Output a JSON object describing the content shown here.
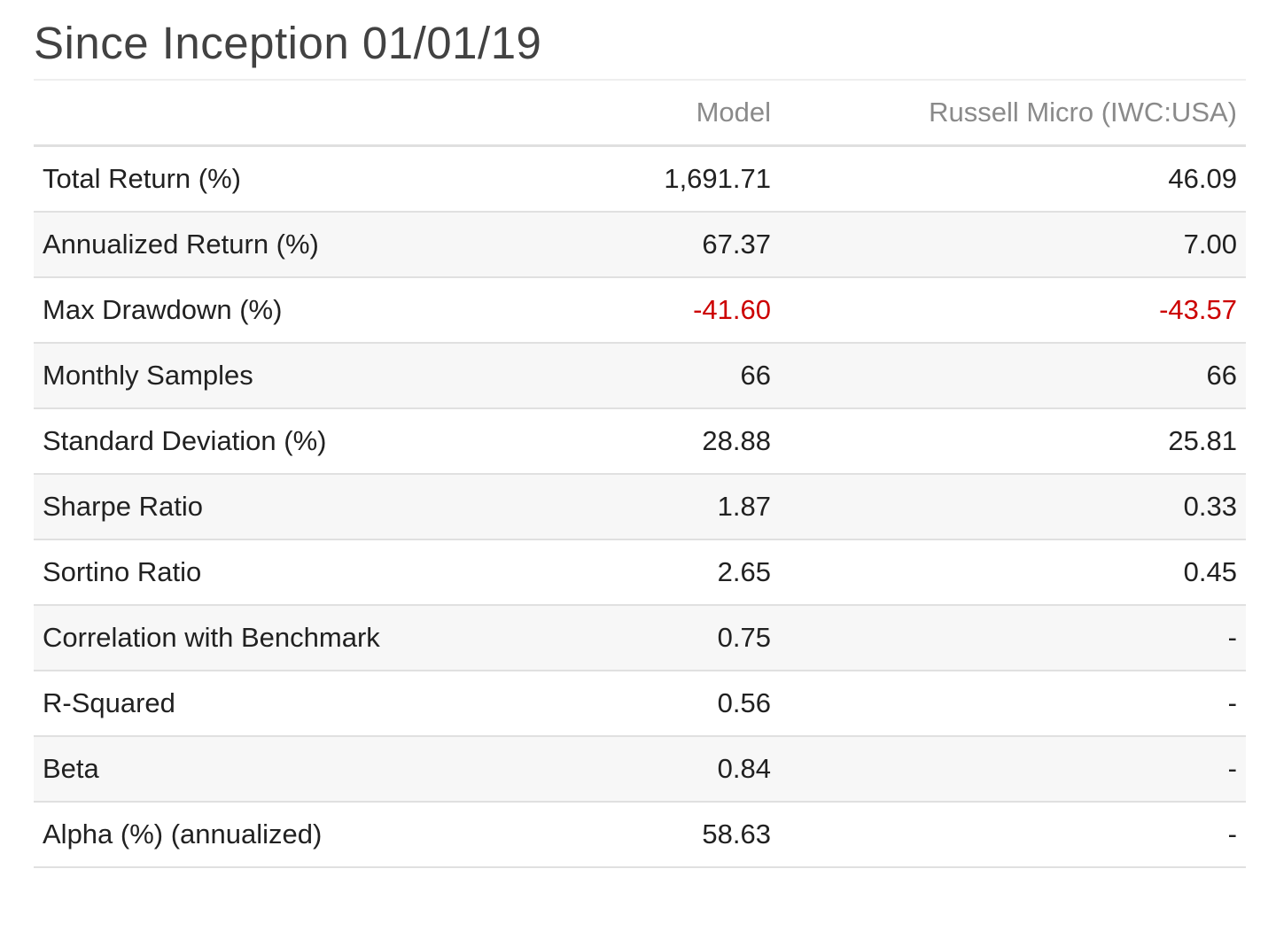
{
  "title": "Since Inception 01/01/19",
  "columns": {
    "model": "Model",
    "benchmark": "Russell Micro (IWC:USA)"
  },
  "rows": [
    {
      "label": "Total Return (%)",
      "model": "1,691.71",
      "benchmark": "46.09"
    },
    {
      "label": "Annualized Return (%)",
      "model": "67.37",
      "benchmark": "7.00"
    },
    {
      "label": "Max Drawdown (%)",
      "model": "-41.60",
      "benchmark": "-43.57"
    },
    {
      "label": "Monthly Samples",
      "model": "66",
      "benchmark": "66"
    },
    {
      "label": "Standard Deviation (%)",
      "model": "28.88",
      "benchmark": "25.81"
    },
    {
      "label": "Sharpe Ratio",
      "model": "1.87",
      "benchmark": "0.33"
    },
    {
      "label": "Sortino Ratio",
      "model": "2.65",
      "benchmark": "0.45"
    },
    {
      "label": "Correlation with Benchmark",
      "model": "0.75",
      "benchmark": "-"
    },
    {
      "label": "R-Squared",
      "model": "0.56",
      "benchmark": "-"
    },
    {
      "label": "Beta",
      "model": "0.84",
      "benchmark": "-"
    },
    {
      "label": "Alpha (%) (annualized)",
      "model": "58.63",
      "benchmark": "-"
    }
  ],
  "colors": {
    "negative": "#cc0000",
    "header_text": "#8a8a8a",
    "row_stripe": "#f7f7f7"
  }
}
